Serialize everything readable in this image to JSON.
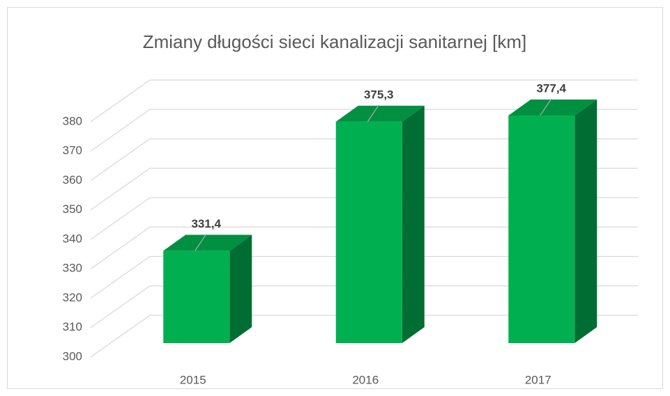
{
  "chart_data": {
    "type": "bar3d",
    "title": "Zmiany długości sieci kanalizacji sanitarnej [km]",
    "categories": [
      "2015",
      "2016",
      "2017"
    ],
    "values": [
      331.4,
      375.3,
      377.4
    ],
    "value_labels": [
      "331,4",
      "375,3",
      "377,4"
    ],
    "color": "#00b050",
    "ylim": [
      300,
      380
    ],
    "yticks": [
      300,
      310,
      320,
      330,
      340,
      350,
      360,
      370,
      380
    ],
    "grid": true
  }
}
